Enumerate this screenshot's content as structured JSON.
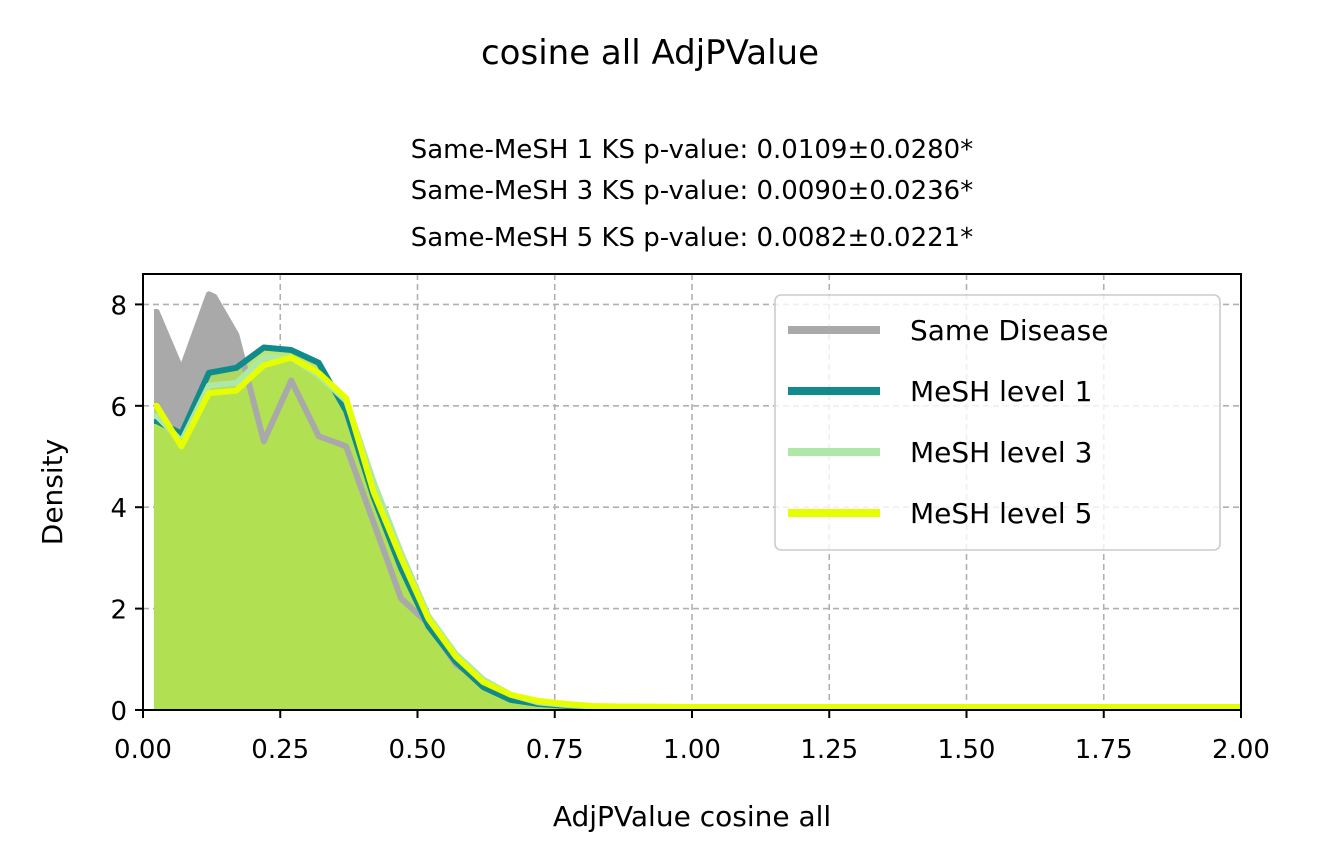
{
  "chart_data": {
    "type": "area",
    "suptitle": "cosine all AdjPValue",
    "subtitle_lines": [
      "Same-MeSH 1 KS p-value: 0.0109±0.0280*",
      "Same-MeSH 3 KS p-value: 0.0090±0.0236*",
      "Same-MeSH 5 KS p-value: 0.0082±0.0221*"
    ],
    "xlabel": "AdjPValue cosine all",
    "ylabel": "Density",
    "xlim": [
      0,
      2
    ],
    "ylim": [
      0,
      8.6
    ],
    "xticks": [
      "0.00",
      "0.25",
      "0.50",
      "0.75",
      "1.00",
      "1.25",
      "1.50",
      "1.75",
      "2.00"
    ],
    "xtick_values": [
      0,
      0.25,
      0.5,
      0.75,
      1.0,
      1.25,
      1.5,
      1.75,
      2.0
    ],
    "yticks": [
      "0",
      "2",
      "4",
      "6",
      "8"
    ],
    "ytick_values": [
      0,
      2,
      4,
      6,
      8
    ],
    "grid": true,
    "legend_position": "top-right",
    "series": [
      {
        "name": "Same Disease",
        "color": "#a9a9a9",
        "fill": true,
        "x": [
          0.02,
          0.025,
          0.07,
          0.12,
          0.13,
          0.17,
          0.22,
          0.27,
          0.32,
          0.37,
          0.42,
          0.47,
          0.52,
          0.57,
          0.62,
          0.67,
          0.72,
          0.77,
          0.82,
          0.87,
          1.0,
          1.25,
          1.5,
          1.75,
          2.0
        ],
        "values": [
          7.85,
          7.85,
          6.7,
          8.2,
          8.15,
          7.4,
          5.3,
          6.5,
          5.4,
          5.2,
          3.7,
          2.2,
          1.7,
          0.9,
          0.55,
          0.25,
          0.12,
          0.08,
          0.06,
          0.05,
          0.04,
          0.04,
          0.04,
          0.04,
          0.04
        ]
      },
      {
        "name": "MeSH level 1",
        "color": "#108a8a",
        "fill": true,
        "x": [
          0.02,
          0.025,
          0.07,
          0.12,
          0.17,
          0.22,
          0.27,
          0.32,
          0.37,
          0.42,
          0.47,
          0.52,
          0.57,
          0.62,
          0.67,
          0.72,
          0.77,
          0.82,
          0.87,
          1.0,
          1.25,
          1.5,
          1.75,
          2.0
        ],
        "values": [
          5.7,
          5.7,
          5.45,
          6.65,
          6.75,
          7.15,
          7.1,
          6.85,
          5.9,
          4.2,
          2.8,
          1.65,
          0.95,
          0.45,
          0.2,
          0.12,
          0.08,
          0.06,
          0.05,
          0.04,
          0.04,
          0.04,
          0.04,
          0.04
        ]
      },
      {
        "name": "MeSH level 3",
        "color": "#aee8a6",
        "fill": true,
        "x": [
          0.02,
          0.025,
          0.07,
          0.12,
          0.17,
          0.22,
          0.27,
          0.32,
          0.37,
          0.42,
          0.47,
          0.52,
          0.57,
          0.62,
          0.67,
          0.72,
          0.77,
          0.82,
          0.87,
          1.0,
          1.25,
          1.5,
          1.75,
          2.0
        ],
        "values": [
          5.8,
          5.8,
          5.3,
          6.4,
          6.45,
          6.95,
          6.95,
          6.6,
          6.1,
          4.5,
          3.1,
          1.85,
          1.1,
          0.6,
          0.3,
          0.15,
          0.1,
          0.07,
          0.06,
          0.05,
          0.05,
          0.05,
          0.05,
          0.05
        ]
      },
      {
        "name": "MeSH level 5",
        "color": "#e6ff00",
        "fill": true,
        "x": [
          0.02,
          0.025,
          0.07,
          0.12,
          0.17,
          0.22,
          0.27,
          0.32,
          0.37,
          0.42,
          0.47,
          0.52,
          0.57,
          0.62,
          0.67,
          0.72,
          0.77,
          0.82,
          0.87,
          1.0,
          1.25,
          1.5,
          1.75,
          2.0
        ],
        "values": [
          6.0,
          6.0,
          5.2,
          6.25,
          6.3,
          6.8,
          6.95,
          6.65,
          6.15,
          4.3,
          3.0,
          1.8,
          1.05,
          0.55,
          0.3,
          0.18,
          0.12,
          0.08,
          0.07,
          0.06,
          0.06,
          0.06,
          0.06,
          0.06
        ]
      }
    ],
    "fill_color": "#b2e053"
  }
}
